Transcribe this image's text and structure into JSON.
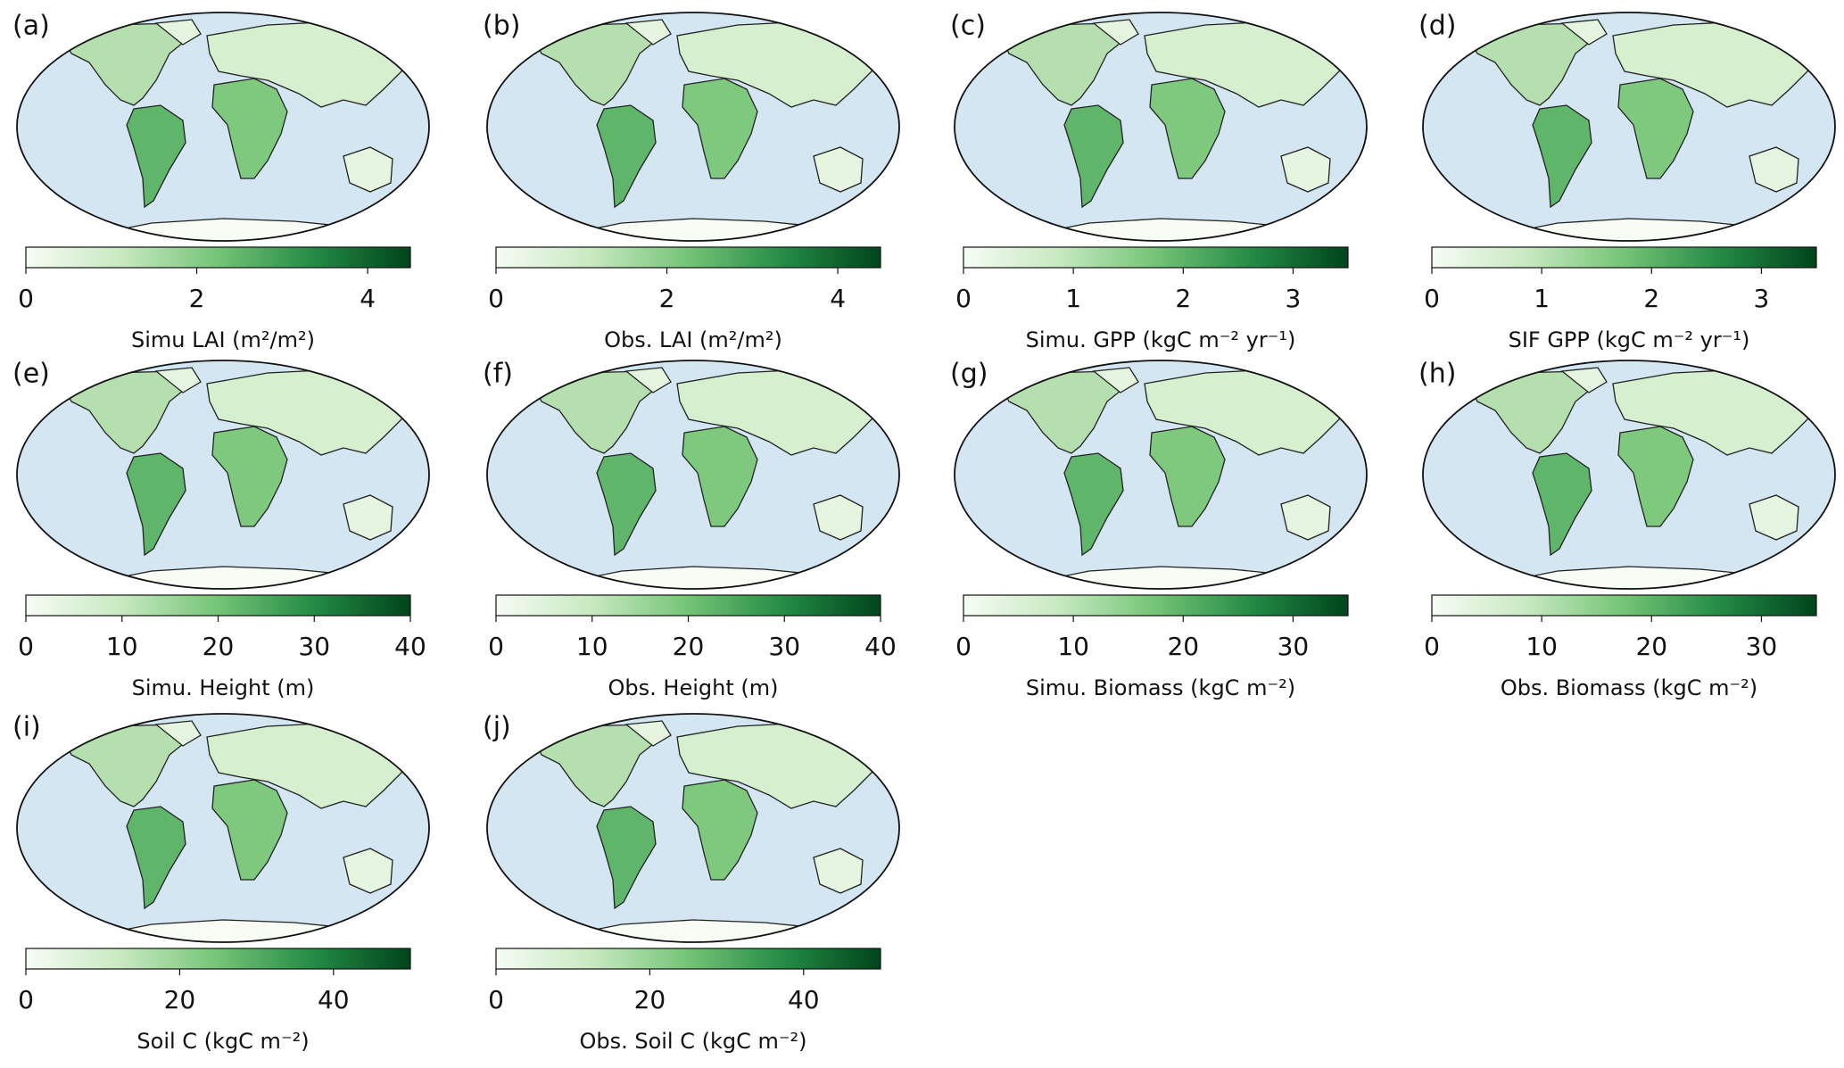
{
  "panels": [
    {
      "label": "(a)",
      "title": "Simu LAI (m²/m²)",
      "lim": [
        0,
        4.5
      ],
      "ticks": [
        0,
        2,
        4
      ]
    },
    {
      "label": "(b)",
      "title": "Obs. LAI (m²/m²)",
      "lim": [
        0,
        4.5
      ],
      "ticks": [
        0,
        2,
        4
      ]
    },
    {
      "label": "(c)",
      "title": "Simu. GPP (kgC m⁻² yr⁻¹)",
      "lim": [
        0,
        3.5
      ],
      "ticks": [
        0,
        1,
        2,
        3
      ]
    },
    {
      "label": "(d)",
      "title": "SIF GPP (kgC m⁻² yr⁻¹)",
      "lim": [
        0,
        3.5
      ],
      "ticks": [
        0,
        1,
        2,
        3
      ]
    },
    {
      "label": "(e)",
      "title": "Simu. Height (m)",
      "lim": [
        0,
        40
      ],
      "ticks": [
        0,
        10,
        20,
        30,
        40
      ]
    },
    {
      "label": "(f)",
      "title": "Obs. Height (m)",
      "lim": [
        0,
        40
      ],
      "ticks": [
        0,
        10,
        20,
        30,
        40
      ]
    },
    {
      "label": "(g)",
      "title": "Simu. Biomass (kgC m⁻²)",
      "lim": [
        0,
        35
      ],
      "ticks": [
        0,
        10,
        20,
        30
      ]
    },
    {
      "label": "(h)",
      "title": "Obs. Biomass (kgC m⁻²)",
      "lim": [
        0,
        35
      ],
      "ticks": [
        0,
        10,
        20,
        30
      ]
    },
    {
      "label": "(i)",
      "title": "Soil C (kgC m⁻²)",
      "lim": [
        0,
        50
      ],
      "ticks": [
        0,
        20,
        40
      ]
    },
    {
      "label": "(j)",
      "title": "Obs. Soil C (kgC m⁻²)",
      "lim": [
        0,
        50
      ],
      "ticks": [
        0,
        20,
        40
      ]
    }
  ]
}
